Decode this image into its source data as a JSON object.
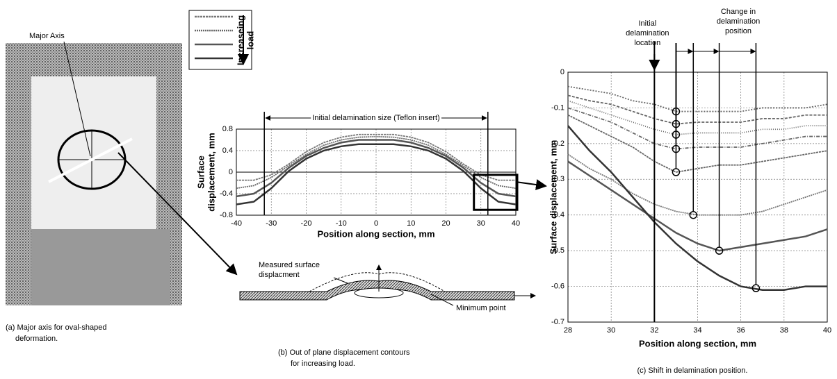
{
  "panel_a": {
    "label": "Major Axis",
    "caption": [
      "(a) Major axis for oval-shaped",
      "deformation."
    ]
  },
  "chart_data": [
    {
      "type": "line",
      "legend_label": [
        "Increaseing",
        "load"
      ],
      "y_label": [
        "Surface",
        "displacement,  mm"
      ],
      "x_label": "Position along section, mm",
      "annotation": "Initial delamination size (Teflon insert)",
      "delamination_edges": [
        -32,
        32
      ],
      "x": [
        -40,
        -35,
        -30,
        -25,
        -20,
        -15,
        -10,
        -5,
        0,
        5,
        10,
        15,
        20,
        25,
        30,
        35,
        40
      ],
      "xlim": [
        -40,
        40
      ],
      "xticks": [
        -40,
        -30,
        -20,
        -10,
        0,
        10,
        20,
        30,
        40
      ],
      "ylim": [
        -0.8,
        0.8
      ],
      "yticks": [
        0.8,
        0.4,
        0,
        -0.4,
        -0.8
      ],
      "grid": true,
      "series": [
        {
          "color": "#777777",
          "values": [
            -0.15,
            -0.15,
            -0.05,
            0.15,
            0.38,
            0.55,
            0.65,
            0.7,
            0.7,
            0.7,
            0.65,
            0.55,
            0.38,
            0.15,
            -0.05,
            -0.15,
            -0.15
          ]
        },
        {
          "color": "#666666",
          "values": [
            -0.3,
            -0.25,
            -0.1,
            0.12,
            0.33,
            0.5,
            0.6,
            0.65,
            0.66,
            0.65,
            0.6,
            0.5,
            0.33,
            0.12,
            -0.1,
            -0.25,
            -0.3
          ]
        },
        {
          "color": "#555555",
          "values": [
            -0.45,
            -0.4,
            -0.2,
            0.08,
            0.3,
            0.45,
            0.55,
            0.6,
            0.6,
            0.6,
            0.55,
            0.45,
            0.3,
            0.08,
            -0.2,
            -0.4,
            -0.45
          ]
        },
        {
          "color": "#333333",
          "values": [
            -0.6,
            -0.55,
            -0.3,
            0.02,
            0.25,
            0.4,
            0.48,
            0.52,
            0.52,
            0.52,
            0.48,
            0.4,
            0.25,
            0.02,
            -0.3,
            -0.55,
            -0.6
          ]
        }
      ]
    },
    {
      "type": "line",
      "y_label": "Surface displacement,  mm",
      "x_label": "Position along section, mm",
      "initial_label": [
        "Initial",
        "delamination",
        "location"
      ],
      "initial_location": 32,
      "change_label": [
        "Change in",
        "delamination",
        "position"
      ],
      "x": [
        28,
        29,
        30,
        31,
        32,
        33,
        34,
        35,
        36,
        37,
        38,
        39,
        40
      ],
      "xlim": [
        28,
        40
      ],
      "xticks": [
        28,
        30,
        32,
        34,
        36,
        38,
        40
      ],
      "ylim": [
        -0.7,
        0
      ],
      "yticks": [
        0,
        -0.1,
        -0.2,
        -0.3,
        -0.4,
        -0.5,
        -0.6,
        -0.7
      ],
      "grid": true,
      "series": [
        {
          "color": "#666666",
          "values": [
            -0.04,
            -0.05,
            -0.06,
            -0.08,
            -0.09,
            -0.11,
            -0.11,
            -0.11,
            -0.11,
            -0.1,
            -0.1,
            -0.1,
            -0.09
          ]
        },
        {
          "color": "#666666",
          "values": [
            -0.065,
            -0.08,
            -0.09,
            -0.11,
            -0.13,
            -0.145,
            -0.14,
            -0.14,
            -0.14,
            -0.13,
            -0.13,
            -0.12,
            -0.12
          ]
        },
        {
          "color": "#666666",
          "values": [
            -0.08,
            -0.1,
            -0.12,
            -0.14,
            -0.16,
            -0.175,
            -0.17,
            -0.17,
            -0.17,
            -0.16,
            -0.16,
            -0.15,
            -0.15
          ]
        },
        {
          "color": "#666666",
          "values": [
            -0.1,
            -0.12,
            -0.14,
            -0.17,
            -0.2,
            -0.215,
            -0.21,
            -0.21,
            -0.21,
            -0.2,
            -0.19,
            -0.18,
            -0.18
          ]
        },
        {
          "color": "#666666",
          "values": [
            -0.12,
            -0.15,
            -0.18,
            -0.21,
            -0.25,
            -0.28,
            -0.27,
            -0.26,
            -0.26,
            -0.25,
            -0.24,
            -0.23,
            -0.22
          ]
        },
        {
          "color": "#777777",
          "values": [
            -0.23,
            -0.27,
            -0.3,
            -0.34,
            -0.37,
            -0.39,
            -0.4,
            -0.4,
            -0.4,
            -0.39,
            -0.37,
            -0.35,
            -0.33
          ]
        },
        {
          "color": "#555555",
          "values": [
            -0.25,
            -0.29,
            -0.33,
            -0.37,
            -0.41,
            -0.45,
            -0.48,
            -0.5,
            -0.49,
            -0.48,
            -0.47,
            -0.46,
            -0.44
          ]
        },
        {
          "color": "#333333",
          "values": [
            -0.15,
            -0.22,
            -0.28,
            -0.35,
            -0.42,
            -0.48,
            -0.53,
            -0.57,
            -0.6,
            -0.61,
            -0.61,
            -0.6,
            -0.6
          ]
        }
      ],
      "minimum_points": {
        "x": [
          33,
          33,
          33,
          33,
          33,
          33.8,
          35,
          36.7
        ],
        "y": [
          -0.11,
          -0.145,
          -0.175,
          -0.215,
          -0.28,
          -0.4,
          -0.5,
          -0.605
        ]
      }
    }
  ],
  "diagram": {
    "measured_label": [
      "Measured surface",
      "displacment"
    ],
    "minimum_label": "Minimum point",
    "caption": [
      "(b) Out of plane displacement contours",
      "for increasing load."
    ]
  },
  "panel_c_caption": "(c) Shift in delamination position."
}
